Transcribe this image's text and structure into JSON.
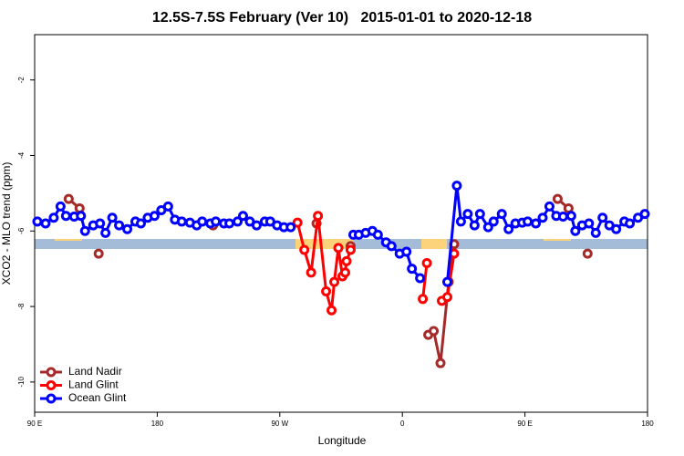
{
  "chart_data": {
    "type": "line",
    "title": "12.5S-7.5S February (Ver 10)   2015-01-01 to 2020-12-18",
    "x_label": "Longitude",
    "y_label": "XCO2 - MLO trend (ppm)",
    "xlim": [
      90,
      540
    ],
    "ylim": [
      -10.8,
      -0.8
    ],
    "xticks": [
      {
        "value": 90,
        "label": "90 E"
      },
      180,
      {
        "value": 270,
        "label": "90 W"
      },
      {
        "value": 360,
        "label": "0"
      },
      {
        "value": 450,
        "label": "90 E"
      },
      {
        "value": 540,
        "label": "180"
      }
    ],
    "yticks": [
      -10,
      -8,
      -6,
      -4,
      -2
    ],
    "legend": "bottom-left",
    "series": [
      {
        "name": "Land Nadir",
        "color": "#a52a2a",
        "x": [
          115,
          123,
          null,
          137,
          null,
          221,
          null,
          297,
          null,
          322,
          null,
          379,
          383,
          388,
          394,
          398,
          null,
          474,
          482,
          null,
          496
        ],
        "values": [
          -5.15,
          -5.4,
          null,
          -6.6,
          null,
          -5.85,
          null,
          -5.8,
          null,
          -6.4,
          null,
          -8.75,
          -8.65,
          -9.5,
          -7.35,
          -6.35,
          null,
          -5.15,
          -5.4,
          null,
          -6.6
        ]
      },
      {
        "name": "Land Glint",
        "color": "#ff0000",
        "x": [
          283,
          288,
          293,
          298,
          304,
          308,
          310,
          313,
          316,
          318,
          319,
          322,
          null,
          375,
          378,
          null,
          389,
          393,
          398
        ],
        "values": [
          -5.78,
          -6.5,
          -7.1,
          -5.6,
          -7.6,
          -8.1,
          -7.35,
          -6.45,
          -7.2,
          -7.1,
          -6.8,
          -6.5,
          null,
          -7.8,
          -6.85,
          null,
          -7.85,
          -7.75,
          -6.6
        ]
      },
      {
        "name": "Ocean Glint",
        "color": "#0000ff",
        "x": [
          92,
          98,
          104,
          109,
          113,
          119,
          124,
          127,
          133,
          138,
          142,
          147,
          152,
          158,
          164,
          168,
          173,
          178,
          183,
          188,
          193,
          198,
          204,
          209,
          213,
          219,
          223,
          229,
          233,
          239,
          243,
          248,
          253,
          259,
          263,
          268,
          273,
          278,
          null,
          324,
          328,
          333,
          338,
          342,
          348,
          352,
          358,
          363,
          367,
          373,
          null,
          393,
          400,
          403,
          408,
          413,
          417,
          423,
          427,
          433,
          438,
          443,
          448,
          452,
          458,
          463,
          468,
          473,
          478,
          484,
          487,
          492,
          497,
          502,
          507,
          512,
          517,
          523,
          527,
          533,
          538
        ],
        "values": [
          -5.75,
          -5.8,
          -5.65,
          -5.35,
          -5.6,
          -5.62,
          -5.6,
          -6.0,
          -5.85,
          -5.8,
          -6.05,
          -5.65,
          -5.85,
          -5.95,
          -5.75,
          -5.8,
          -5.65,
          -5.6,
          -5.45,
          -5.35,
          -5.7,
          -5.75,
          -5.78,
          -5.85,
          -5.75,
          -5.8,
          -5.75,
          -5.8,
          -5.8,
          -5.75,
          -5.6,
          -5.75,
          -5.85,
          -5.75,
          -5.75,
          -5.85,
          -5.9,
          -5.9,
          null,
          -6.1,
          -6.1,
          -6.05,
          -6.0,
          -6.1,
          -6.3,
          -6.4,
          -6.6,
          -6.55,
          -7.0,
          -7.25,
          null,
          -7.35,
          -4.8,
          -5.75,
          -5.55,
          -5.85,
          -5.55,
          -5.9,
          -5.75,
          -5.55,
          -5.95,
          -5.8,
          -5.78,
          -5.75,
          -5.8,
          -5.65,
          -5.35,
          -5.6,
          -5.62,
          -5.6,
          -6.0,
          -5.85,
          -5.8,
          -6.05,
          -5.65,
          -5.85,
          -5.95,
          -5.75,
          -5.8,
          -5.65,
          -5.55
        ]
      }
    ]
  }
}
